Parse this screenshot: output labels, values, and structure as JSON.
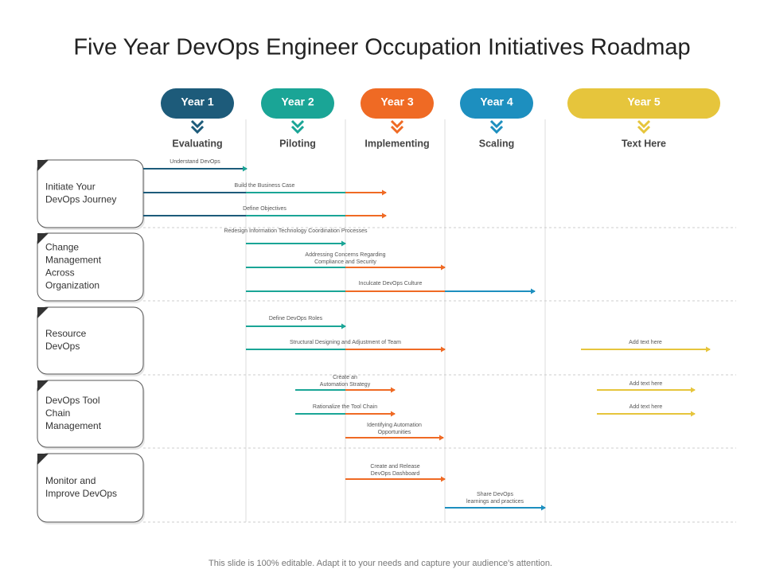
{
  "header": {
    "title": "Five Year DevOps Engineer Occupation Initiatives Roadmap"
  },
  "years": [
    {
      "label": "Year 1",
      "phase": "Evaluating"
    },
    {
      "label": "Year 2",
      "phase": "Piloting"
    },
    {
      "label": "Year 3",
      "phase": "Implementing"
    },
    {
      "label": "Year 4",
      "phase": "Scaling"
    },
    {
      "label": "Year 5",
      "phase": "Text Here"
    }
  ],
  "rows": [
    {
      "lines": [
        "Initiate Your",
        "DevOps  Journey"
      ]
    },
    {
      "lines": [
        "Change",
        "Management",
        "Across",
        "Organization"
      ]
    },
    {
      "lines": [
        "Resource",
        "DevOps"
      ]
    },
    {
      "lines": [
        "DevOps  Tool",
        "Chain",
        "Management"
      ]
    },
    {
      "lines": [
        "Monitor and",
        "Improve  DevOps"
      ]
    }
  ],
  "tasks": [
    {
      "lines": [
        "Understand  DevOps"
      ]
    },
    {
      "lines": [
        "Build  the Business  Case"
      ]
    },
    {
      "lines": [
        "Define  Objectives"
      ]
    },
    {
      "lines": [
        "Redesign  Information  Technology  Coordination  Processes"
      ]
    },
    {
      "lines": [
        "Addressing  Concerns  Regarding",
        "Compliance and Security"
      ]
    },
    {
      "lines": [
        "Inculcate  DevOps  Culture"
      ]
    },
    {
      "lines": [
        "Define  DevOps  Roles"
      ]
    },
    {
      "lines": [
        "Structural  Designing   and  Adjustment   of Team"
      ]
    },
    {
      "lines": [
        "Add text here"
      ]
    },
    {
      "lines": [
        "Create an",
        "Automation  Strategy"
      ]
    },
    {
      "lines": [
        "Add text here"
      ]
    },
    {
      "lines": [
        "Rationalize  the Tool Chain"
      ]
    },
    {
      "lines": [
        "Add text here"
      ]
    },
    {
      "lines": [
        "Identifying  Automation",
        "Opportunities"
      ]
    },
    {
      "lines": [
        "Create and  Release",
        "DevOps Dashboard"
      ]
    },
    {
      "lines": [
        "Share  DevOps",
        "learnings  and  practices"
      ]
    }
  ],
  "footer": "This slide is 100% editable. Adapt it to your needs and capture your audience's attention."
}
